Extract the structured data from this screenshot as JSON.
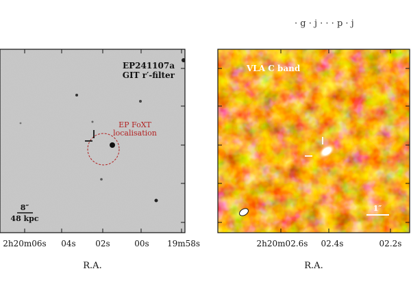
{
  "top_caption": "· g · j · · · p · j",
  "left_panel": {
    "title_line1": "EP241107a",
    "title_line2": "GIT r′-filter",
    "localisation_line1": "EP FoXT",
    "localisation_line2": "localisation",
    "localisation_color": "#b22222",
    "scalebar_top": "8″",
    "scalebar_bottom": "48 kpc",
    "xticks": [
      "2h20m06s",
      "04s",
      "02s",
      "00s",
      "19m58s"
    ],
    "xlabel": "R.A."
  },
  "right_panel": {
    "title": "VLA C band",
    "scalebar_label": "1″",
    "xticks": [
      "2h20m02.6s",
      "02.4s",
      "02.2s"
    ],
    "xlabel": "R.A."
  }
}
